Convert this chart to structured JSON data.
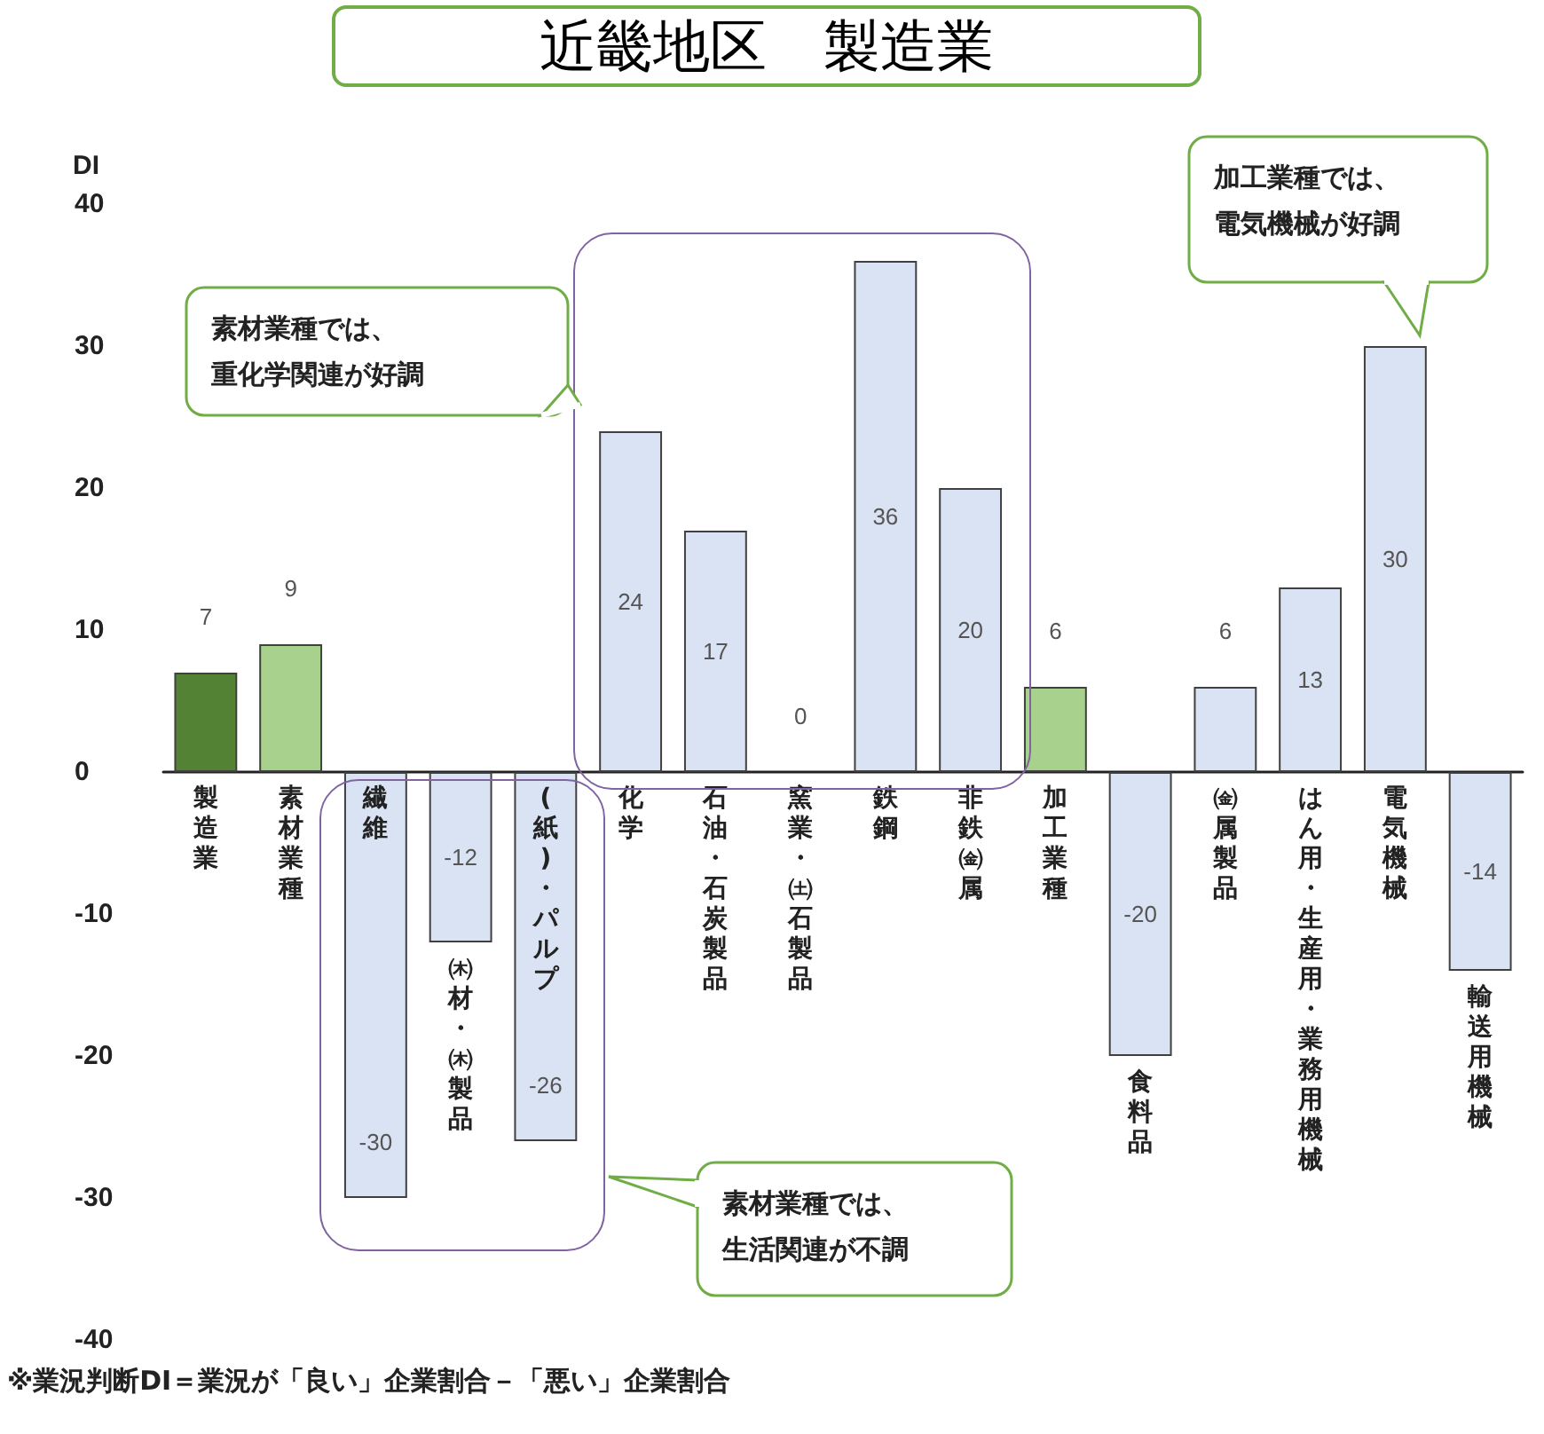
{
  "chart_data": {
    "type": "bar",
    "title": "近畿地区　製造業",
    "ylabel": "DI",
    "categories": [
      "製造業",
      "素材業種",
      "繊維",
      "㈭材・㈭製品",
      "(紙)・パルプ",
      "化学",
      "石油・石炭製品",
      "窯業・㈯石製品",
      "鉄鋼",
      "非鉄㈮属",
      "加工業種",
      "食料品",
      "㈮属製品",
      "はん用・生産用・業務用機械",
      "電気機械",
      "輸送用機械"
    ],
    "values": [
      7,
      9,
      -30,
      -12,
      -26,
      24,
      17,
      0,
      36,
      20,
      6,
      -20,
      6,
      13,
      30,
      -14
    ],
    "colors": [
      "#548235",
      "#a9d18e",
      "#dae3f3",
      "#dae3f3",
      "#dae3f3",
      "#dae3f3",
      "#dae3f3",
      "#dae3f3",
      "#dae3f3",
      "#dae3f3",
      "#a9d18e",
      "#dae3f3",
      "#dae3f3",
      "#dae3f3",
      "#dae3f3",
      "#dae3f3"
    ],
    "ylim": [
      -40,
      40
    ],
    "yticks": [
      -40,
      -30,
      -20,
      -10,
      0,
      10,
      20,
      30,
      40
    ],
    "data_labels": true,
    "annotations": [
      "素材業種では、重化学関連が好調",
      "加工業種では、電気機械が好調",
      "素材業種では、生活関連が不調",
      "※業況判断DI＝業況が「良い」企業割合－「悪い」企業割合"
    ]
  }
}
